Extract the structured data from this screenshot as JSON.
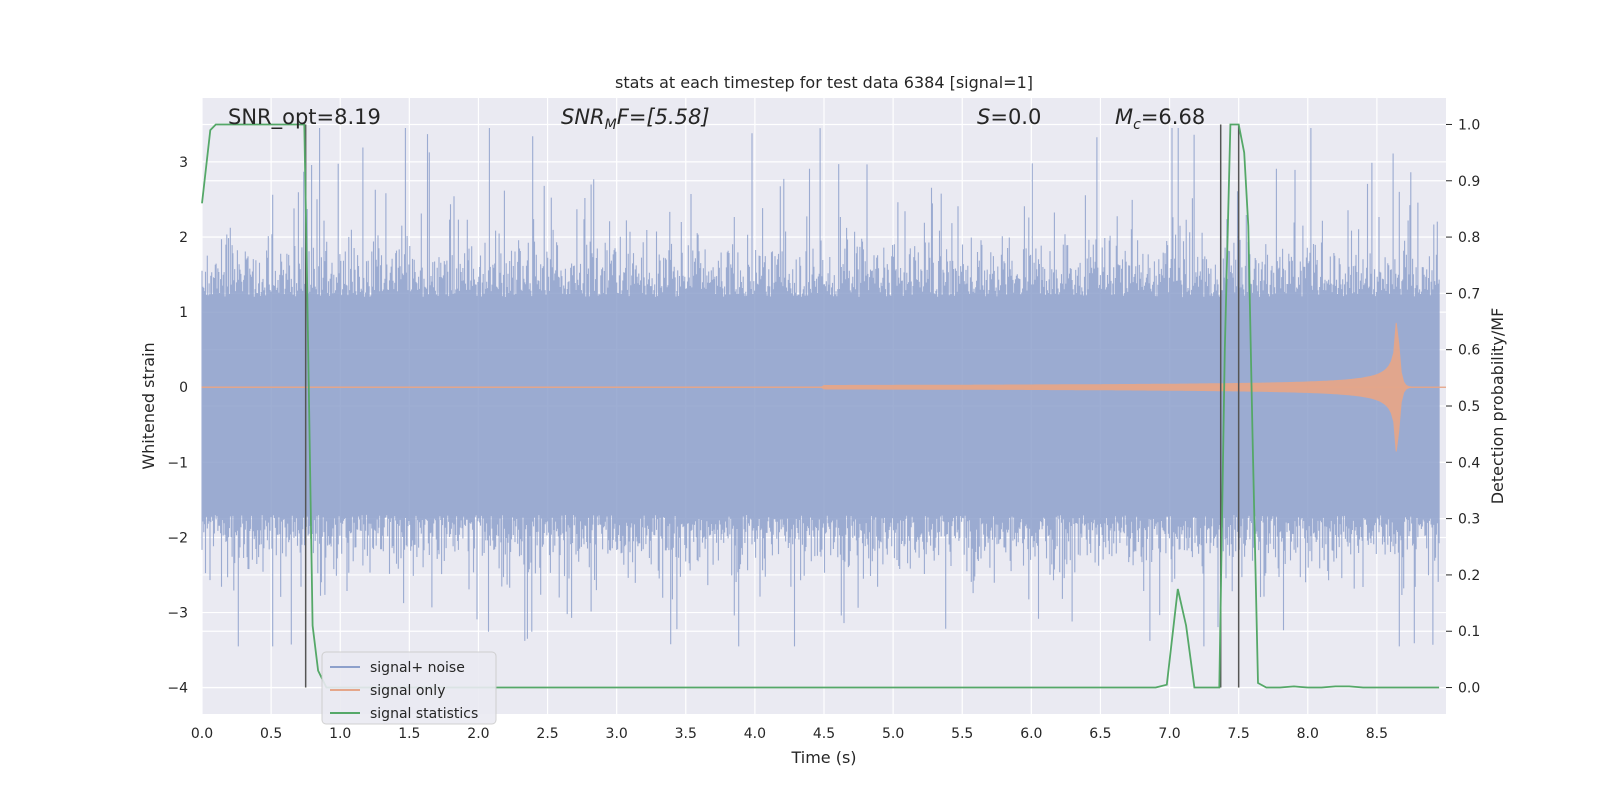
{
  "chart_data": {
    "type": "line",
    "title": "stats at each timestep for test data 6384 [signal=1]",
    "xlabel": "Time (s)",
    "ylabel": "Whitened strain",
    "y2label": "Detection probability/MF",
    "xlim": [
      0.0,
      9.0
    ],
    "ylim": [
      -4.35,
      3.85
    ],
    "y2lim": [
      -0.047,
      1.047
    ],
    "xticks": [
      "0.0",
      "0.5",
      "1.0",
      "1.5",
      "2.0",
      "2.5",
      "3.0",
      "3.5",
      "4.0",
      "4.5",
      "5.0",
      "5.5",
      "6.0",
      "6.5",
      "7.0",
      "7.5",
      "8.0",
      "8.5"
    ],
    "xtick_values": [
      0.0,
      0.5,
      1.0,
      1.5,
      2.0,
      2.5,
      3.0,
      3.5,
      4.0,
      4.5,
      5.0,
      5.5,
      6.0,
      6.5,
      7.0,
      7.5,
      8.0,
      8.5
    ],
    "yticks": [
      "3",
      "2",
      "1",
      "0",
      "−1",
      "−2",
      "−3",
      "−4"
    ],
    "ytick_values": [
      3,
      2,
      1,
      0,
      -1,
      -2,
      -3,
      -4
    ],
    "y2ticks": [
      "1.0",
      "0.9",
      "0.8",
      "0.7",
      "0.6",
      "0.5",
      "0.4",
      "0.3",
      "0.2",
      "0.1",
      "0.0"
    ],
    "y2tick_values": [
      1.0,
      0.9,
      0.8,
      0.7,
      0.6,
      0.5,
      0.4,
      0.3,
      0.2,
      0.1,
      0.0
    ],
    "grid": true,
    "legend_position": "lower-left",
    "annotations": {
      "snr_opt": "SNR_opt=8.19",
      "snr_mf_main": "SNR",
      "snr_mf_sub": "M",
      "snr_mf_rest": "F=[5.58]",
      "s_main": "S",
      "s_rest": "=0.0",
      "mc_main": "M",
      "mc_sub": "c",
      "mc_rest": "=6.68"
    },
    "series": [
      {
        "name": "signal+ noise",
        "color": "#8da0cb",
        "axis": "left",
        "description_envelope": {
          "typical_upper": 1.2,
          "typical_lower": -1.7,
          "peak_upper": 3.45,
          "peak_lower": -3.45,
          "end_time": 8.95
        }
      },
      {
        "name": "signal only",
        "color": "#e5a68a",
        "axis": "left",
        "chirp": {
          "start_time": 4.5,
          "merger_time": 8.65,
          "peak_amplitude": 0.95,
          "end_time": 9.0
        }
      },
      {
        "name": "signal statistics",
        "color": "#55a868",
        "axis": "right",
        "x": [
          0.0,
          0.06,
          0.1,
          0.2,
          0.3,
          0.4,
          0.5,
          0.6,
          0.7,
          0.74,
          0.76,
          0.8,
          0.84,
          0.9,
          1.0,
          1.5,
          2.0,
          2.5,
          3.0,
          3.5,
          4.0,
          4.5,
          5.0,
          5.5,
          6.0,
          6.5,
          6.9,
          6.98,
          7.06,
          7.12,
          7.18,
          7.24,
          7.3,
          7.36,
          7.4,
          7.44,
          7.5,
          7.54,
          7.57,
          7.6,
          7.64,
          7.7,
          7.8,
          7.9,
          7.95,
          8.0,
          8.1,
          8.2,
          8.3,
          8.4,
          8.5,
          8.6,
          8.7,
          8.8,
          8.9,
          8.95
        ],
        "values": [
          0.86,
          0.99,
          1.0,
          1.0,
          1.0,
          1.0,
          1.0,
          1.0,
          1.0,
          1.0,
          0.73,
          0.11,
          0.03,
          0.0,
          0.0,
          0.0,
          0.0,
          0.0,
          0.0,
          0.0,
          0.0,
          0.0,
          0.0,
          0.0,
          0.0,
          0.0,
          0.0,
          0.005,
          0.175,
          0.11,
          0.0,
          0.0,
          0.0,
          0.0,
          0.6,
          1.0,
          1.0,
          0.95,
          0.82,
          0.45,
          0.008,
          0.0,
          0.0,
          0.002,
          0.001,
          0.0,
          0.0,
          0.002,
          0.002,
          0.0,
          0.0,
          0.0,
          0.0,
          0.0,
          0.0,
          0.0
        ]
      }
    ],
    "vertical_markers": [
      {
        "time": 0.75,
        "color": "#555555"
      },
      {
        "time": 7.37,
        "color": "#555555"
      },
      {
        "time": 7.5,
        "color": "#555555"
      }
    ]
  }
}
